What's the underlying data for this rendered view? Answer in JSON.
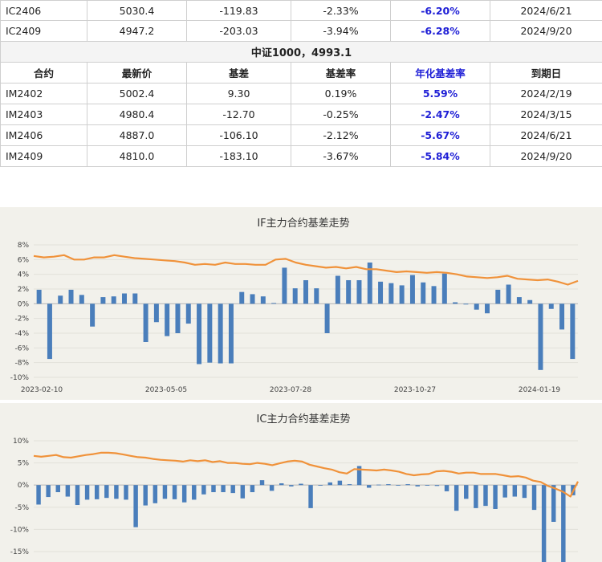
{
  "table": {
    "rows_top": [
      {
        "contract": "IC2406",
        "latest": "5030.4",
        "basis": "-119.83",
        "rate": "-2.33%",
        "annual": "-6.20%",
        "expiry": "2024/6/21"
      },
      {
        "contract": "IC2409",
        "latest": "4947.2",
        "basis": "-203.03",
        "rate": "-3.94%",
        "annual": "-6.28%",
        "expiry": "2024/9/20"
      }
    ],
    "section_title": "中证1000，4993.1",
    "headers": [
      "合约",
      "最新价",
      "基差",
      "基差率",
      "年化基差率",
      "到期日"
    ],
    "rows_bottom": [
      {
        "contract": "IM2402",
        "latest": "5002.4",
        "basis": "9.30",
        "rate": "0.19%",
        "annual": "5.59%",
        "expiry": "2024/2/19"
      },
      {
        "contract": "IM2403",
        "latest": "4980.4",
        "basis": "-12.70",
        "rate": "-0.25%",
        "annual": "-2.47%",
        "expiry": "2024/3/15"
      },
      {
        "contract": "IM2406",
        "latest": "4887.0",
        "basis": "-106.10",
        "rate": "-2.12%",
        "annual": "-5.67%",
        "expiry": "2024/6/21"
      },
      {
        "contract": "IM2409",
        "latest": "4810.0",
        "basis": "-183.10",
        "rate": "-3.67%",
        "annual": "-5.84%",
        "expiry": "2024/9/20"
      }
    ]
  },
  "chart_data": [
    {
      "type": "bar+line",
      "title": "IF主力合约基差走势",
      "ylim": [
        -10,
        8
      ],
      "yticks": [
        "8%",
        "6%",
        "4%",
        "2%",
        "0%",
        "-2%",
        "-4%",
        "-6%",
        "-8%",
        "-10%"
      ],
      "xticks": [
        "2023-02-10",
        "2023-05-05",
        "2023-07-28",
        "2023-10-27",
        "2024-01-19"
      ],
      "bar_color": "#4a7ebb",
      "line_color": "#f0923a",
      "bars": [
        1.9,
        -7.5,
        1.1,
        1.9,
        1.2,
        -3.1,
        0.9,
        1.0,
        1.4,
        1.4,
        -5.2,
        -2.5,
        -4.4,
        -4.0,
        -2.7,
        -8.2,
        -8.0,
        -8.1,
        -8.1,
        1.6,
        1.3,
        1.0,
        0.1,
        4.9,
        2.1,
        3.2,
        2.1,
        -4.0,
        3.8,
        3.2,
        3.2,
        5.6,
        3.0,
        2.8,
        2.5,
        3.9,
        2.9,
        2.4,
        4.1,
        0.2,
        -0.1,
        -0.8,
        -1.3,
        1.9,
        2.6,
        0.9,
        0.5,
        -9.0,
        -0.7,
        -3.5,
        -7.5
      ],
      "line": [
        6.5,
        6.3,
        6.4,
        6.6,
        6.0,
        6.0,
        6.3,
        6.3,
        6.6,
        6.4,
        6.2,
        6.1,
        6.0,
        5.9,
        5.8,
        5.6,
        5.3,
        5.4,
        5.3,
        5.6,
        5.4,
        5.4,
        5.3,
        5.3,
        6.0,
        6.1,
        5.6,
        5.3,
        5.1,
        4.9,
        5.0,
        4.8,
        5.0,
        4.7,
        4.7,
        4.5,
        4.3,
        4.4,
        4.3,
        4.2,
        4.3,
        4.2,
        4.0,
        3.7,
        3.6,
        3.5,
        3.6,
        3.8,
        3.4,
        3.3,
        3.2,
        3.3,
        3.0,
        2.6,
        3.1
      ]
    },
    {
      "type": "bar+line",
      "title": "IC主力合约基差走势",
      "ylim": [
        -17,
        10
      ],
      "yticks": [
        "10%",
        "5%",
        "0%",
        "-5%",
        "-10%",
        "-15%"
      ],
      "bar_color": "#4a7ebb",
      "line_color": "#f0923a",
      "bars": [
        -4.4,
        -2.7,
        -1.6,
        -2.6,
        -4.5,
        -3.3,
        -3.2,
        -2.9,
        -3.1,
        -3.3,
        -9.5,
        -4.6,
        -4.1,
        -3.1,
        -3.2,
        -3.9,
        -3.3,
        -2.1,
        -1.6,
        -1.6,
        -1.8,
        -3.0,
        -1.6,
        1.1,
        -1.3,
        0.4,
        -0.3,
        0.3,
        -5.2,
        -0.1,
        0.6,
        1.0,
        0.2,
        4.3,
        -0.6,
        0.1,
        0.2,
        0.0,
        0.2,
        -0.3,
        -0.1,
        -0.2,
        -1.4,
        -5.8,
        -3.1,
        -5.2,
        -4.7,
        -5.4,
        -2.8,
        -2.6,
        -2.9,
        -5.6,
        -17.5,
        -8.3,
        -17.6,
        -2.3
      ],
      "line": [
        6.6,
        6.4,
        6.6,
        6.8,
        6.3,
        6.2,
        6.5,
        6.8,
        7.0,
        7.3,
        7.3,
        7.2,
        6.9,
        6.6,
        6.3,
        6.2,
        5.9,
        5.7,
        5.6,
        5.5,
        5.3,
        5.6,
        5.4,
        5.6,
        5.2,
        5.4,
        5.0,
        5.0,
        4.8,
        4.7,
        5.0,
        4.8,
        4.5,
        4.9,
        5.3,
        5.5,
        5.3,
        4.6,
        4.2,
        3.8,
        3.5,
        2.9,
        2.6,
        3.6,
        3.5,
        3.4,
        3.3,
        3.5,
        3.3,
        3.0,
        2.5,
        2.2,
        2.4,
        2.5,
        3.1,
        3.2,
        3.0,
        2.6,
        2.8,
        2.8,
        2.5,
        2.5,
        2.5,
        2.2,
        1.9,
        2.0,
        1.7,
        1.0,
        0.7,
        -0.2,
        -0.8,
        -1.5,
        -2.6,
        0.8
      ]
    }
  ]
}
